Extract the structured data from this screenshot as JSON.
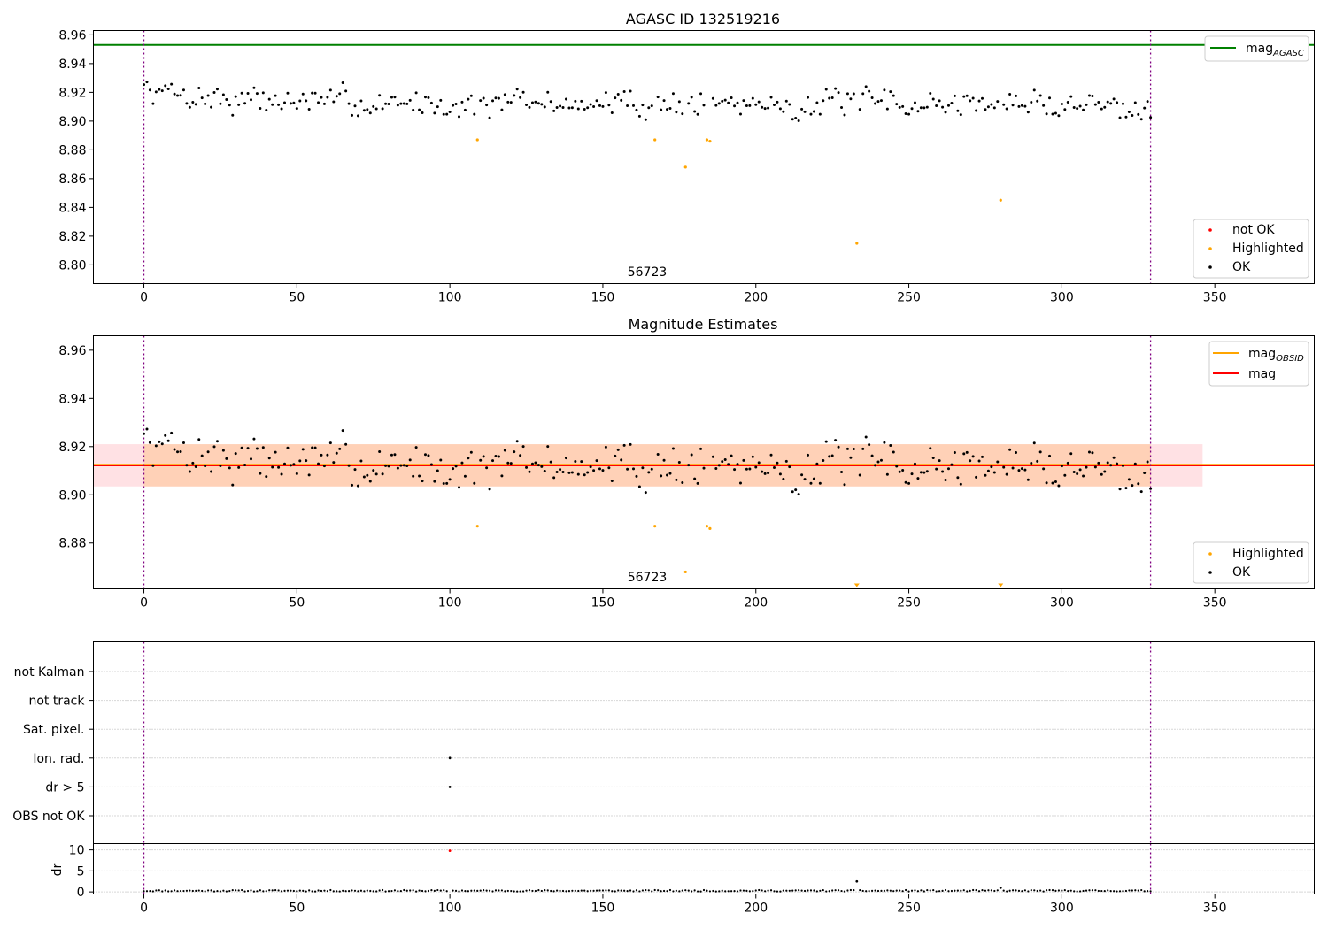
{
  "chart_data": [
    {
      "type": "scatter",
      "title": "AGASC ID 132519216",
      "xlabel": "",
      "ylabel": "",
      "xlim": [
        -16.5,
        382.5
      ],
      "ylim": [
        8.787,
        8.963
      ],
      "xticks": [
        0,
        50,
        100,
        150,
        200,
        250,
        300,
        350
      ],
      "yticks": [
        8.8,
        8.82,
        8.84,
        8.86,
        8.88,
        8.9,
        8.92,
        8.94,
        8.96
      ],
      "ytick_labels": [
        "8.80",
        "8.82",
        "8.84",
        "8.86",
        "8.88",
        "8.90",
        "8.92",
        "8.94",
        "8.96"
      ],
      "annotation": "56723",
      "vlines": [
        0,
        329
      ],
      "hlines": [
        {
          "name": "mag_AGASC",
          "y": 8.953,
          "color": "#008000"
        }
      ],
      "legend_lines": [
        {
          "label": "mag",
          "sub": "AGASC",
          "color": "#008000"
        }
      ],
      "legend_points": [
        {
          "label": "not OK",
          "color": "#ff0000"
        },
        {
          "label": "Highlighted",
          "color": "#ffa500"
        },
        {
          "label": "OK",
          "color": "#000000"
        }
      ],
      "highlighted": [
        [
          109,
          8.887
        ],
        [
          167,
          8.887
        ],
        [
          177,
          8.868
        ],
        [
          184,
          8.887
        ],
        [
          185,
          8.886
        ],
        [
          233,
          8.815
        ],
        [
          280,
          8.845
        ]
      ],
      "ok_seed": 7,
      "ok_n": 330,
      "ok_mean": 8.912,
      "ok_spread": 0.012
    },
    {
      "type": "scatter",
      "title": "Magnitude Estimates",
      "xlabel": "",
      "ylabel": "",
      "xlim": [
        -16.5,
        382.5
      ],
      "ylim": [
        8.861,
        8.966
      ],
      "xticks": [
        0,
        50,
        100,
        150,
        200,
        250,
        300,
        350
      ],
      "yticks": [
        8.88,
        8.9,
        8.92,
        8.94,
        8.96
      ],
      "ytick_labels": [
        "8.88",
        "8.90",
        "8.92",
        "8.94",
        "8.96"
      ],
      "annotation": "56723",
      "vlines": [
        0,
        329
      ],
      "hlines": [
        {
          "name": "mag_OBSID",
          "y": 8.9125,
          "color": "#ffa500"
        },
        {
          "name": "mag",
          "y": 8.9122,
          "color": "#ff0000"
        }
      ],
      "bands": [
        {
          "x0": -16.5,
          "x1": 346,
          "y0": 8.9035,
          "y1": 8.921,
          "color": "#ffb3bb",
          "opacity": 0.4
        },
        {
          "x0": 0,
          "x1": 329,
          "y0": 8.9035,
          "y1": 8.921,
          "color": "#ffbf80",
          "opacity": 0.45
        }
      ],
      "legend_lines": [
        {
          "label": "mag",
          "sub": "OBSID",
          "color": "#ffa500"
        },
        {
          "label": "mag",
          "sub": "",
          "color": "#ff0000"
        }
      ],
      "legend_points": [
        {
          "label": "Highlighted",
          "color": "#ffa500"
        },
        {
          "label": "OK",
          "color": "#000000"
        }
      ],
      "highlighted": [
        [
          109,
          8.887
        ],
        [
          167,
          8.887
        ],
        [
          177,
          8.868
        ],
        [
          184,
          8.887
        ],
        [
          185,
          8.886
        ]
      ],
      "highlighted_offscale": [
        233,
        280
      ],
      "ok_seed": 7,
      "ok_n": 330,
      "ok_mean": 8.912,
      "ok_spread": 0.012
    },
    {
      "type": "scatter",
      "title": "",
      "xlabel": "",
      "xlim": [
        -16.5,
        382.5
      ],
      "xticks": [
        0,
        50,
        100,
        150,
        200,
        250,
        300,
        350
      ],
      "flag_labels": [
        "not Kalman",
        "not track",
        "Sat. pixel.",
        "Ion. rad.",
        "dr > 5",
        "OBS not OK"
      ],
      "flag_points": [
        {
          "flag": "Ion. rad.",
          "x": 100
        },
        {
          "flag": "dr > 5",
          "x": 100
        }
      ],
      "vlines": [
        0,
        329
      ]
    },
    {
      "type": "scatter",
      "title": "",
      "ylabel": "dr",
      "xlim": [
        -16.5,
        382.5
      ],
      "ylim": [
        -0.5,
        11.5
      ],
      "xticks": [
        0,
        50,
        100,
        150,
        200,
        250,
        300,
        350
      ],
      "yticks": [
        0,
        5,
        10
      ],
      "dr_outliers": [
        [
          100,
          9.8,
          "#ff0000"
        ],
        [
          233,
          2.5,
          "#000000"
        ],
        [
          280,
          1.0,
          "#000000"
        ]
      ],
      "dr_n": 330,
      "vlines": [
        0,
        329
      ]
    }
  ]
}
